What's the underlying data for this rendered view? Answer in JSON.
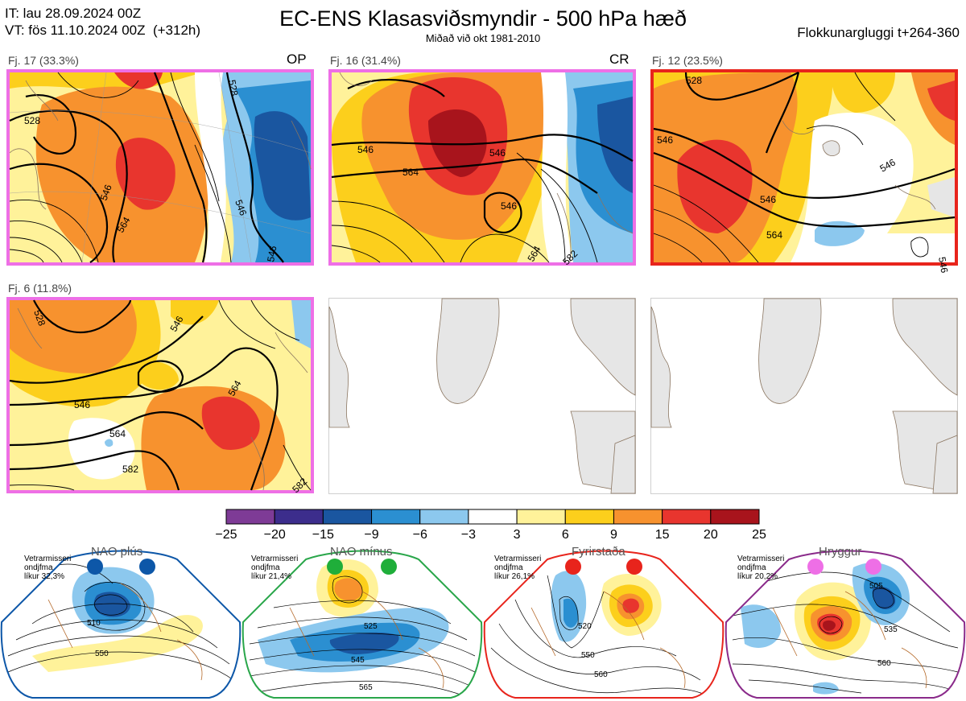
{
  "header": {
    "it_line": "IT: lau 28.09.2024 00Z",
    "vt_line": "VT: fös 11.10.2024 00Z  (+312h)",
    "title": "EC-ENS Klasasviðsmyndir - 500 hPa hæð",
    "subtitle": "Miðað við okt 1981-2010",
    "window": "Flokkunargluggi t+264-360"
  },
  "clusters": [
    {
      "label": "Fj. 17 (33.3%)",
      "tag": "OP",
      "border": "magenta",
      "contours": [
        "528",
        "546",
        "564",
        "546",
        "528",
        "546"
      ]
    },
    {
      "label": "Fj. 16 (31.4%)",
      "tag": "CR",
      "border": "magenta",
      "contours": [
        "546",
        "564",
        "546",
        "546",
        "564",
        "582"
      ]
    },
    {
      "label": "Fj. 12 (23.5%)",
      "tag": "",
      "border": "red",
      "contours": [
        "528",
        "546",
        "546",
        "546",
        "564",
        "546"
      ]
    },
    {
      "label": "Fj. 6 (11.8%)",
      "tag": "",
      "border": "magenta",
      "contours": [
        "528",
        "546",
        "546",
        "564",
        "564",
        "582",
        "582"
      ]
    }
  ],
  "colorbar": {
    "ticks": [
      "−25",
      "−20",
      "−15",
      "−9",
      "−6",
      "−3",
      "3",
      "6",
      "9",
      "15",
      "20",
      "25"
    ],
    "colors": [
      "#7e3b96",
      "#3c2d8c",
      "#1a56a0",
      "#2b8fd1",
      "#8cc8ee",
      "#ffffff",
      "#fff29a",
      "#fccf1c",
      "#f7922e",
      "#e8352e",
      "#a8141c"
    ]
  },
  "regimes": [
    {
      "name": "NAO plús",
      "stat_l1": "Vetrarmisseri",
      "stat_l2": "ondjfma",
      "stat_l3": "líkur 32,3%",
      "dot_color": "#0d57a8",
      "frame_color": "#0d57a8",
      "contours": [
        "510",
        "550"
      ]
    },
    {
      "name": "NAO mínus",
      "stat_l1": "Vetrarmisseri",
      "stat_l2": "ondjfma",
      "stat_l3": "líkur 21,4%",
      "dot_color": "#1fae3a",
      "frame_color": "#29a64a",
      "contours": [
        "525",
        "545",
        "565"
      ]
    },
    {
      "name": "Fyrirstaða",
      "stat_l1": "Vetrarmisseri",
      "stat_l2": "ondjfma",
      "stat_l3": "líkur 26,1%",
      "dot_color": "#e8241c",
      "frame_color": "#e8241c",
      "contours": [
        "520",
        "550",
        "560"
      ]
    },
    {
      "name": "Hryggur",
      "stat_l1": "Vetrarmisseri",
      "stat_l2": "ondjfma",
      "stat_l3": "líkur 20,2%",
      "dot_color": "#ee6fe6",
      "frame_color": "#8a2a8a",
      "contours": [
        "505",
        "535",
        "560"
      ]
    }
  ]
}
